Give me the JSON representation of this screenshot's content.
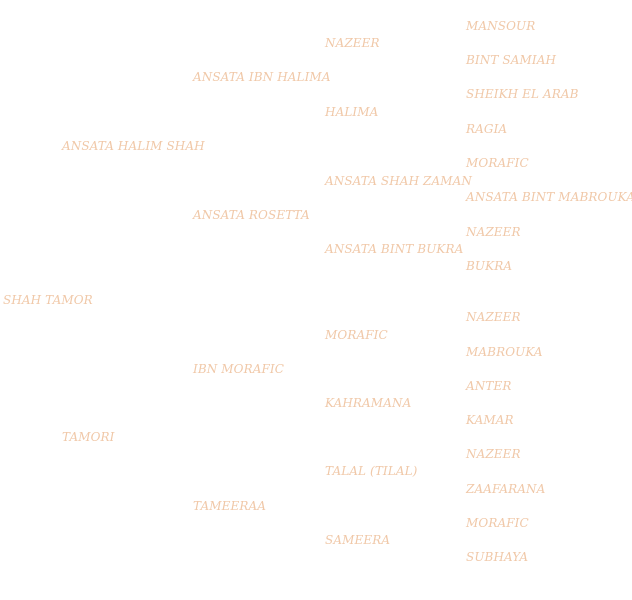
{
  "style": {
    "text_color": "#f0c8a8",
    "background": "#ffffff"
  },
  "pedigree": {
    "subject": "SHAH TAMOR",
    "sire": "ANSATA HALIM SHAH",
    "dam": "TAMORI",
    "paternal_grandsire": "ANSATA IBN HALIMA",
    "paternal_granddam": "ANSATA ROSETTA",
    "maternal_grandsire": "IBN MORAFIC",
    "maternal_granddam": "TAMEERAA",
    "gen3": [
      "NAZEER",
      "HALIMA",
      "ANSATA SHAH ZAMAN",
      "ANSATA BINT BUKRA",
      "MORAFIC",
      "KAHRAMANA",
      "TALAL (TILAL)",
      "SAMEERA"
    ],
    "gen4": [
      "MANSOUR",
      "BINT SAMIAH",
      "SHEIKH EL ARAB",
      "RAGIA",
      "MORAFIC",
      "ANSATA BINT MABROUKA",
      "NAZEER",
      "BUKRA",
      "NAZEER",
      "MABROUKA",
      "ANTER",
      "KAMAR",
      "NAZEER",
      "ZAAFARANA",
      "MORAFIC",
      "SUBHAYA"
    ]
  }
}
